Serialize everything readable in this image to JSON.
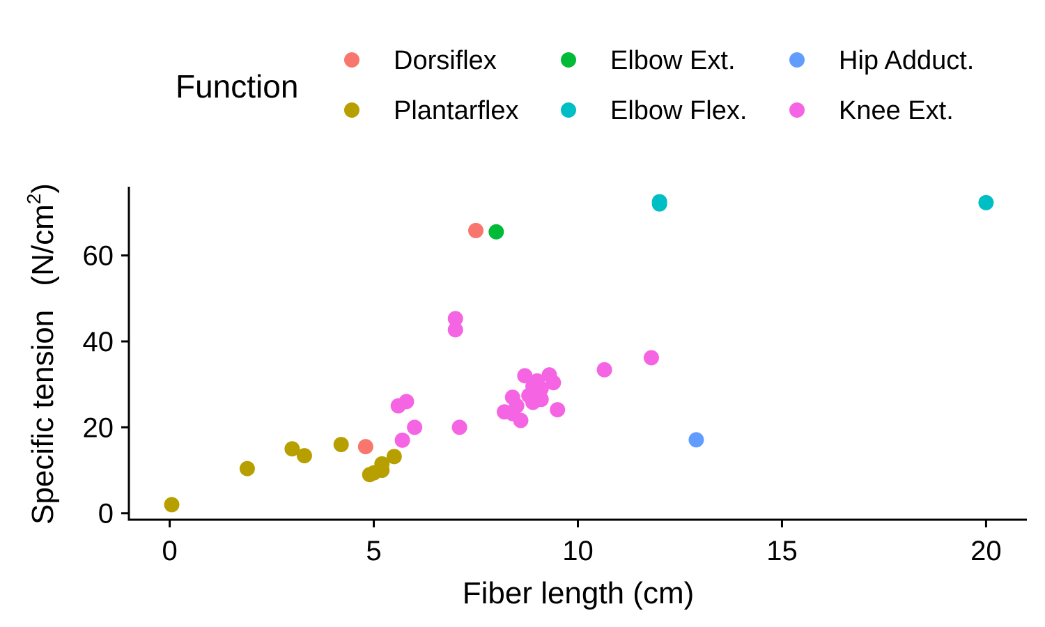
{
  "chart_data": {
    "type": "scatter",
    "xlabel": "Fiber length (cm)",
    "ylabel_main": "Specific tension",
    "ylabel_unit": "(N/cm",
    "ylabel_sup": "2",
    "ylabel_close": ")",
    "xlim": [
      -1,
      21
    ],
    "ylim": [
      -1.5,
      76
    ],
    "x_ticks": [
      0,
      5,
      10,
      15,
      20
    ],
    "y_ticks": [
      0,
      20,
      40,
      60
    ],
    "x_tick_labels": [
      "0",
      "5",
      "10",
      "15",
      "20"
    ],
    "y_tick_labels": [
      "0",
      "20",
      "40",
      "60"
    ],
    "grid": false,
    "legend": {
      "title": "Function",
      "position": "top"
    },
    "series": [
      {
        "name": "Dorsiflex",
        "color": "#F8766D",
        "points": [
          [
            4.8,
            15.5
          ],
          [
            7.5,
            65.8
          ]
        ]
      },
      {
        "name": "Plantarflex",
        "color": "#B79F00",
        "points": [
          [
            0.05,
            2.0
          ],
          [
            1.9,
            10.4
          ],
          [
            3.0,
            15.0
          ],
          [
            3.3,
            13.4
          ],
          [
            4.2,
            16.0
          ],
          [
            4.9,
            9.0
          ],
          [
            5.0,
            9.4
          ],
          [
            5.2,
            10.0
          ],
          [
            5.2,
            11.5
          ],
          [
            5.5,
            13.2
          ]
        ]
      },
      {
        "name": "Elbow Ext.",
        "color": "#00BA38",
        "points": [
          [
            8.0,
            65.5
          ]
        ]
      },
      {
        "name": "Elbow Flex.",
        "color": "#00BFC4",
        "points": [
          [
            12.0,
            72.0
          ],
          [
            12.0,
            72.5
          ],
          [
            20.0,
            72.3
          ]
        ]
      },
      {
        "name": "Hip Adduct.",
        "color": "#619CFF",
        "points": [
          [
            12.9,
            17.1
          ]
        ]
      },
      {
        "name": "Knee Ext.",
        "color": "#F564E3",
        "points": [
          [
            5.6,
            25.0
          ],
          [
            5.8,
            26.0
          ],
          [
            5.7,
            17.0
          ],
          [
            6.0,
            20.0
          ],
          [
            7.0,
            45.3
          ],
          [
            7.0,
            42.7
          ],
          [
            7.1,
            20.0
          ],
          [
            8.2,
            23.6
          ],
          [
            8.4,
            23.2
          ],
          [
            8.4,
            27.0
          ],
          [
            8.5,
            25.0
          ],
          [
            8.6,
            21.6
          ],
          [
            8.7,
            32.0
          ],
          [
            8.8,
            27.4
          ],
          [
            8.9,
            25.8
          ],
          [
            8.9,
            29.5
          ],
          [
            9.0,
            30.8
          ],
          [
            9.0,
            27.5
          ],
          [
            9.1,
            29.0
          ],
          [
            9.1,
            26.5
          ],
          [
            9.3,
            32.2
          ],
          [
            9.4,
            30.4
          ],
          [
            9.5,
            24.1
          ],
          [
            10.65,
            33.4
          ],
          [
            11.8,
            36.2
          ]
        ]
      }
    ]
  }
}
